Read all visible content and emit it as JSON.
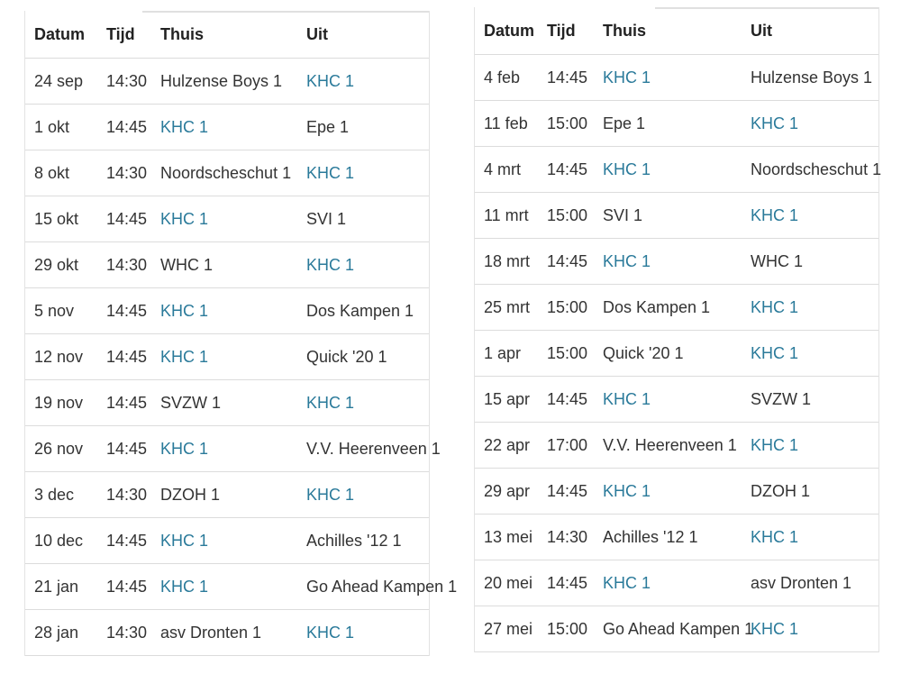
{
  "link_color": "#2a7a9a",
  "headers": [
    "Datum",
    "Tijd",
    "Thuis",
    "Uit"
  ],
  "left_rows": [
    [
      "24 sep",
      "14:30",
      "Hulzense Boys 1",
      "KHC 1"
    ],
    [
      "1 okt",
      "14:45",
      "KHC 1",
      "Epe 1"
    ],
    [
      "8 okt",
      "14:30",
      "Noordscheschut 1",
      "KHC 1"
    ],
    [
      "15 okt",
      "14:45",
      "KHC 1",
      "SVI 1"
    ],
    [
      "29 okt",
      "14:30",
      "WHC 1",
      "KHC 1"
    ],
    [
      "5 nov",
      "14:45",
      "KHC 1",
      "Dos Kampen 1"
    ],
    [
      "12 nov",
      "14:45",
      "KHC 1",
      "Quick '20 1"
    ],
    [
      "19 nov",
      "14:45",
      "SVZW 1",
      "KHC 1"
    ],
    [
      "26 nov",
      "14:45",
      "KHC 1",
      "V.V. Heerenveen 1"
    ],
    [
      "3 dec",
      "14:30",
      "DZOH 1",
      "KHC 1"
    ],
    [
      "10 dec",
      "14:45",
      "KHC 1",
      "Achilles '12 1"
    ],
    [
      "21 jan",
      "14:45",
      "KHC 1",
      "Go Ahead Kampen 1"
    ],
    [
      "28 jan",
      "14:30",
      "asv Dronten 1",
      "KHC 1"
    ]
  ],
  "right_rows": [
    [
      "4 feb",
      "14:45",
      "KHC 1",
      "Hulzense Boys 1"
    ],
    [
      "11 feb",
      "15:00",
      "Epe 1",
      "KHC 1"
    ],
    [
      "4 mrt",
      "14:45",
      "KHC 1",
      "Noordscheschut 1"
    ],
    [
      "11 mrt",
      "15:00",
      "SVI 1",
      "KHC 1"
    ],
    [
      "18 mrt",
      "14:45",
      "KHC 1",
      "WHC 1"
    ],
    [
      "25 mrt",
      "15:00",
      "Dos Kampen 1",
      "KHC 1"
    ],
    [
      "1 apr",
      "15:00",
      "Quick '20 1",
      "KHC 1"
    ],
    [
      "15 apr",
      "14:45",
      "KHC 1",
      "SVZW 1"
    ],
    [
      "22 apr",
      "17:00",
      "V.V. Heerenveen 1",
      "KHC 1"
    ],
    [
      "29 apr",
      "14:45",
      "KHC 1",
      "DZOH 1"
    ],
    [
      "13 mei",
      "14:30",
      "Achilles '12 1",
      "KHC 1"
    ],
    [
      "20 mei",
      "14:45",
      "KHC 1",
      "asv Dronten 1"
    ],
    [
      "27 mei",
      "15:00",
      "Go Ahead Kampen 1",
      "KHC 1"
    ]
  ]
}
